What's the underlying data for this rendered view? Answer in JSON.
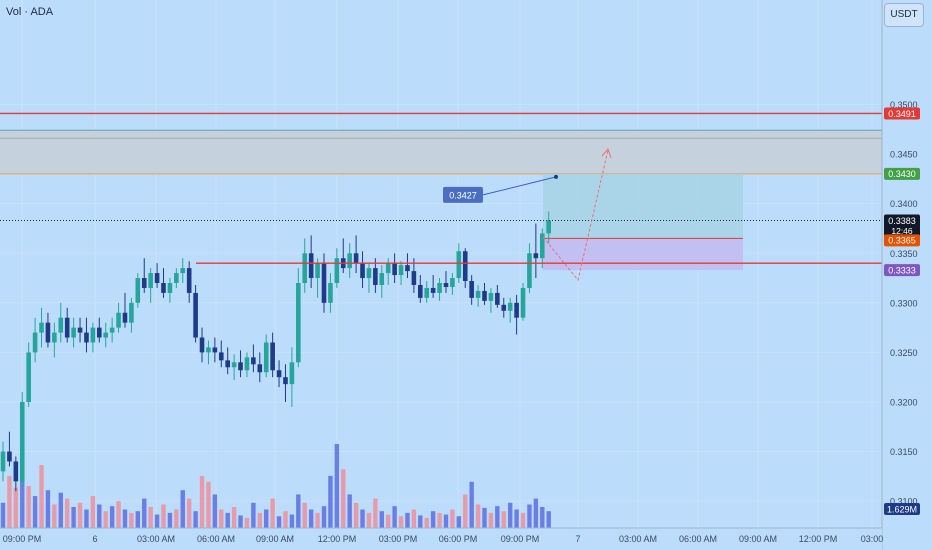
{
  "header": {
    "title": "Vol · ADA",
    "currency": "USDT"
  },
  "colors": {
    "background": "#bcdcfb",
    "up": "#26a69a",
    "down": "#1e3a8a",
    "vol_up": "#5b6ee1",
    "vol_down": "#ef8f9a",
    "resistance": "#e53935",
    "zone": "#c5d2de"
  },
  "chart_data": {
    "type": "candlestick",
    "ylim": [
      0.3085,
      0.3555
    ],
    "y_ticks": [
      "0.3500",
      "0.3450",
      "0.3400",
      "0.3350",
      "0.3300",
      "0.3250",
      "0.3200",
      "0.3150",
      "0.3100"
    ],
    "x_ticks": [
      "09:00 PM",
      "6",
      "03:00 AM",
      "06:00 AM",
      "09:00 AM",
      "12:00 PM",
      "03:00 PM",
      "06:00 PM",
      "09:00 PM",
      "7",
      "03:00 AM",
      "06:00 AM",
      "09:00 AM",
      "12:00 PM",
      "03:00"
    ],
    "price_labels": {
      "resistance": "0.3491",
      "target": "0.3430",
      "current": "0.3383",
      "countdown": "12:46",
      "stop": "0.3365",
      "entry": "0.3333",
      "volume": "1.629M"
    },
    "levels": {
      "resistance": 0.3491,
      "zone_top": 0.3474,
      "zone_mid": 0.3466,
      "zone_bottom": 0.343,
      "support": 0.334,
      "current": 0.3383
    },
    "callout": {
      "label": "0.3427",
      "value": 0.3427
    },
    "position": {
      "target": 0.343,
      "stop": 0.3365,
      "entry": 0.3333
    },
    "candles": [
      [
        0.313,
        0.316,
        0.312,
        0.315
      ],
      [
        0.315,
        0.317,
        0.3135,
        0.314
      ],
      [
        0.314,
        0.3145,
        0.311,
        0.312
      ],
      [
        0.312,
        0.321,
        0.3115,
        0.32
      ],
      [
        0.32,
        0.326,
        0.3195,
        0.325
      ],
      [
        0.325,
        0.3285,
        0.324,
        0.327
      ],
      [
        0.327,
        0.3295,
        0.3255,
        0.328
      ],
      [
        0.328,
        0.329,
        0.3255,
        0.326
      ],
      [
        0.326,
        0.328,
        0.3245,
        0.327
      ],
      [
        0.327,
        0.33,
        0.326,
        0.3285
      ],
      [
        0.3285,
        0.3295,
        0.326,
        0.3265
      ],
      [
        0.3265,
        0.3285,
        0.3255,
        0.3275
      ],
      [
        0.3275,
        0.3285,
        0.326,
        0.327
      ],
      [
        0.327,
        0.3285,
        0.325,
        0.326
      ],
      [
        0.326,
        0.328,
        0.325,
        0.3275
      ],
      [
        0.3275,
        0.3285,
        0.326,
        0.3265
      ],
      [
        0.3265,
        0.328,
        0.3255,
        0.327
      ],
      [
        0.327,
        0.3285,
        0.326,
        0.3275
      ],
      [
        0.3275,
        0.33,
        0.327,
        0.329
      ],
      [
        0.329,
        0.331,
        0.3275,
        0.328
      ],
      [
        0.328,
        0.3305,
        0.327,
        0.33
      ],
      [
        0.33,
        0.333,
        0.3295,
        0.3325
      ],
      [
        0.3325,
        0.3345,
        0.331,
        0.3315
      ],
      [
        0.3315,
        0.3335,
        0.33,
        0.333
      ],
      [
        0.333,
        0.334,
        0.3315,
        0.332
      ],
      [
        0.332,
        0.3335,
        0.3305,
        0.331
      ],
      [
        0.331,
        0.3325,
        0.33,
        0.332
      ],
      [
        0.332,
        0.3335,
        0.3315,
        0.333
      ],
      [
        0.333,
        0.3345,
        0.332,
        0.3335
      ],
      [
        0.3335,
        0.3342,
        0.33,
        0.331
      ],
      [
        0.331,
        0.3318,
        0.326,
        0.3265
      ],
      [
        0.3265,
        0.3275,
        0.324,
        0.325
      ],
      [
        0.325,
        0.3262,
        0.3238,
        0.3255
      ],
      [
        0.3255,
        0.3265,
        0.324,
        0.325
      ],
      [
        0.325,
        0.3262,
        0.3235,
        0.3242
      ],
      [
        0.3242,
        0.3255,
        0.3228,
        0.3235
      ],
      [
        0.3235,
        0.3248,
        0.3222,
        0.324
      ],
      [
        0.324,
        0.3252,
        0.3225,
        0.3232
      ],
      [
        0.3232,
        0.325,
        0.3225,
        0.3245
      ],
      [
        0.3245,
        0.3258,
        0.323,
        0.3238
      ],
      [
        0.3238,
        0.325,
        0.322,
        0.323
      ],
      [
        0.323,
        0.3268,
        0.3225,
        0.326
      ],
      [
        0.326,
        0.327,
        0.3225,
        0.3232
      ],
      [
        0.3232,
        0.3242,
        0.3215,
        0.3225
      ],
      [
        0.3225,
        0.3238,
        0.32,
        0.3218
      ],
      [
        0.3218,
        0.3255,
        0.3195,
        0.324
      ],
      [
        0.324,
        0.3335,
        0.3235,
        0.332
      ],
      [
        0.332,
        0.3365,
        0.331,
        0.335
      ],
      [
        0.335,
        0.3368,
        0.3315,
        0.3325
      ],
      [
        0.3325,
        0.3345,
        0.3305,
        0.334
      ],
      [
        0.334,
        0.335,
        0.329,
        0.33
      ],
      [
        0.33,
        0.333,
        0.329,
        0.332
      ],
      [
        0.332,
        0.3355,
        0.3315,
        0.3345
      ],
      [
        0.3345,
        0.3365,
        0.333,
        0.3335
      ],
      [
        0.3335,
        0.336,
        0.3325,
        0.335
      ],
      [
        0.335,
        0.3368,
        0.333,
        0.334
      ],
      [
        0.334,
        0.3352,
        0.3315,
        0.3325
      ],
      [
        0.3325,
        0.334,
        0.331,
        0.3335
      ],
      [
        0.3335,
        0.3345,
        0.331,
        0.3318
      ],
      [
        0.3318,
        0.3338,
        0.3305,
        0.333
      ],
      [
        0.333,
        0.3345,
        0.3318,
        0.334
      ],
      [
        0.334,
        0.335,
        0.332,
        0.3328
      ],
      [
        0.3328,
        0.3342,
        0.3318,
        0.3338
      ],
      [
        0.3338,
        0.335,
        0.3325,
        0.3332
      ],
      [
        0.3332,
        0.3345,
        0.331,
        0.3318
      ],
      [
        0.3318,
        0.3328,
        0.33,
        0.3305
      ],
      [
        0.3305,
        0.3322,
        0.33,
        0.3315
      ],
      [
        0.3315,
        0.3328,
        0.3305,
        0.331
      ],
      [
        0.331,
        0.3325,
        0.3302,
        0.332
      ],
      [
        0.332,
        0.3332,
        0.331,
        0.3316
      ],
      [
        0.3316,
        0.333,
        0.3308,
        0.3325
      ],
      [
        0.3325,
        0.336,
        0.332,
        0.3352
      ],
      [
        0.3352,
        0.3355,
        0.3315,
        0.3322
      ],
      [
        0.3322,
        0.3328,
        0.3298,
        0.3305
      ],
      [
        0.3305,
        0.3318,
        0.3296,
        0.3312
      ],
      [
        0.3312,
        0.332,
        0.3298,
        0.3302
      ],
      [
        0.3302,
        0.3315,
        0.329,
        0.331
      ],
      [
        0.331,
        0.3318,
        0.3295,
        0.3298
      ],
      [
        0.3298,
        0.3305,
        0.3285,
        0.3292
      ],
      [
        0.3292,
        0.3305,
        0.328,
        0.33
      ],
      [
        0.33,
        0.3308,
        0.3268,
        0.3285
      ],
      [
        0.3285,
        0.332,
        0.3282,
        0.3315
      ],
      [
        0.3315,
        0.336,
        0.331,
        0.335
      ],
      [
        0.335,
        0.338,
        0.3325,
        0.3345
      ],
      [
        0.3345,
        0.3375,
        0.3335,
        0.337
      ],
      [
        0.337,
        0.3392,
        0.336,
        0.3383
      ]
    ],
    "volume": [
      [
        0.3,
        1
      ],
      [
        0.62,
        0
      ],
      [
        0.48,
        0
      ],
      [
        0.87,
        1
      ],
      [
        0.5,
        0
      ],
      [
        0.38,
        1
      ],
      [
        0.75,
        0
      ],
      [
        0.45,
        1
      ],
      [
        0.28,
        0
      ],
      [
        0.42,
        1
      ],
      [
        0.35,
        0
      ],
      [
        0.25,
        1
      ],
      [
        0.3,
        0
      ],
      [
        0.22,
        1
      ],
      [
        0.38,
        0
      ],
      [
        0.28,
        1
      ],
      [
        0.2,
        0
      ],
      [
        0.26,
        1
      ],
      [
        0.32,
        0
      ],
      [
        0.22,
        1
      ],
      [
        0.18,
        0
      ],
      [
        0.2,
        1
      ],
      [
        0.35,
        1
      ],
      [
        0.25,
        0
      ],
      [
        0.16,
        1
      ],
      [
        0.28,
        0
      ],
      [
        0.18,
        1
      ],
      [
        0.22,
        0
      ],
      [
        0.45,
        1
      ],
      [
        0.35,
        0
      ],
      [
        0.2,
        1
      ],
      [
        0.62,
        0
      ],
      [
        0.55,
        0
      ],
      [
        0.4,
        1
      ],
      [
        0.22,
        0
      ],
      [
        0.18,
        1
      ],
      [
        0.25,
        0
      ],
      [
        0.15,
        1
      ],
      [
        0.12,
        0
      ],
      [
        0.3,
        1
      ],
      [
        0.18,
        0
      ],
      [
        0.22,
        1
      ],
      [
        0.35,
        0
      ],
      [
        0.14,
        1
      ],
      [
        0.2,
        0
      ],
      [
        0.16,
        1
      ],
      [
        0.4,
        1
      ],
      [
        0.3,
        0
      ],
      [
        0.22,
        1
      ],
      [
        0.18,
        0
      ],
      [
        0.26,
        1
      ],
      [
        0.62,
        1
      ],
      [
        1.0,
        1
      ],
      [
        0.7,
        0
      ],
      [
        0.4,
        1
      ],
      [
        0.3,
        0
      ],
      [
        0.22,
        1
      ],
      [
        0.18,
        0
      ],
      [
        0.35,
        0
      ],
      [
        0.2,
        1
      ],
      [
        0.16,
        0
      ],
      [
        0.26,
        1
      ],
      [
        0.14,
        0
      ],
      [
        0.18,
        1
      ],
      [
        0.22,
        0
      ],
      [
        0.15,
        1
      ],
      [
        0.12,
        0
      ],
      [
        0.2,
        1
      ],
      [
        0.18,
        0
      ],
      [
        0.16,
        1
      ],
      [
        0.22,
        0
      ],
      [
        0.14,
        1
      ],
      [
        0.4,
        0
      ],
      [
        0.55,
        1
      ],
      [
        0.28,
        0
      ],
      [
        0.24,
        1
      ],
      [
        0.18,
        0
      ],
      [
        0.26,
        1
      ],
      [
        0.2,
        0
      ],
      [
        0.3,
        1
      ],
      [
        0.22,
        1
      ],
      [
        0.18,
        0
      ],
      [
        0.28,
        1
      ],
      [
        0.35,
        1
      ],
      [
        0.25,
        1
      ],
      [
        0.2,
        1
      ]
    ]
  }
}
